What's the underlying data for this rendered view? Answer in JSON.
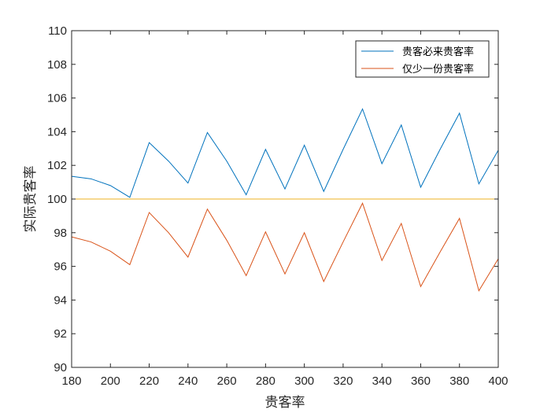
{
  "chart_data": {
    "type": "line",
    "xlabel": "贵客率",
    "ylabel": "实际贵客率",
    "xlim": [
      180,
      400
    ],
    "ylim": [
      90,
      110
    ],
    "xticks": [
      180,
      200,
      220,
      240,
      260,
      280,
      300,
      320,
      340,
      360,
      380,
      400
    ],
    "yticks": [
      90,
      92,
      94,
      96,
      98,
      100,
      102,
      104,
      106,
      108,
      110
    ],
    "grid": false,
    "legend_position": "top-right",
    "x": [
      180,
      190,
      200,
      210,
      220,
      230,
      240,
      250,
      260,
      270,
      280,
      290,
      300,
      310,
      320,
      330,
      340,
      350,
      360,
      370,
      380,
      390,
      400
    ],
    "series": [
      {
        "name": "贵客必来贵客率",
        "color": "#0072BD",
        "values": [
          101.35,
          101.2,
          100.8,
          100.1,
          103.35,
          102.25,
          100.95,
          103.95,
          102.25,
          100.25,
          102.95,
          100.6,
          103.2,
          100.45,
          102.95,
          105.35,
          102.1,
          104.4,
          100.7,
          102.95,
          105.1,
          100.9,
          102.9
        ]
      },
      {
        "name": "仅少一份贵客率",
        "color": "#D95319",
        "values": [
          97.75,
          97.45,
          96.9,
          96.1,
          99.2,
          98.0,
          96.55,
          99.4,
          97.55,
          95.45,
          98.05,
          95.55,
          98.0,
          95.1,
          97.45,
          99.75,
          96.35,
          98.55,
          94.8,
          96.85,
          98.85,
          94.55,
          96.45
        ]
      },
      {
        "color": "#EDB120",
        "values": [
          100,
          100,
          100,
          100,
          100,
          100,
          100,
          100,
          100,
          100,
          100,
          100,
          100,
          100,
          100,
          100,
          100,
          100,
          100,
          100,
          100,
          100,
          100
        ]
      }
    ]
  }
}
